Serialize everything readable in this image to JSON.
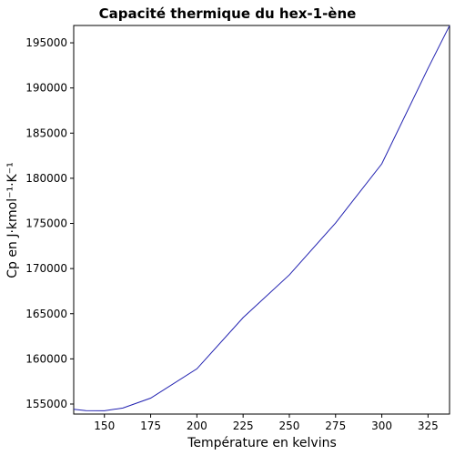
{
  "chart_data": {
    "type": "line",
    "title": "Capacité thermique du hex-1-ène",
    "x_label": "Température en kelvins",
    "y_label": "Cp en J·kmol⁻¹·K⁻¹",
    "x": [
      133.39,
      140,
      150,
      160,
      175,
      200,
      225,
      250,
      275,
      300,
      325,
      336.63
    ],
    "series": [
      {
        "color": "#2020b0",
        "values": [
          154420,
          154270,
          154250,
          154560,
          155650,
          158900,
          164570,
          169300,
          175050,
          181600,
          192180,
          196900
        ]
      }
    ],
    "xlim": [
      133.39,
      336.63
    ],
    "ylim": [
      153890,
      196920
    ],
    "xticks": [
      150,
      175,
      200,
      225,
      250,
      275,
      300,
      325
    ],
    "yticks": [
      155000,
      160000,
      165000,
      170000,
      175000,
      180000,
      185000,
      190000,
      195000
    ],
    "grid": false
  }
}
